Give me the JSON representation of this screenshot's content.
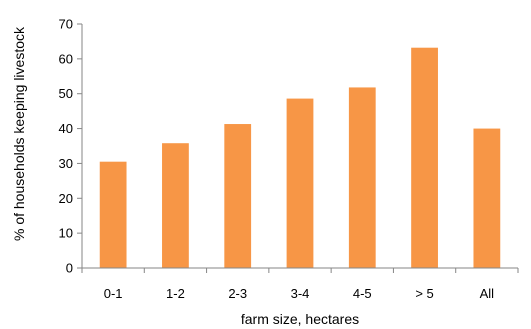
{
  "chart_data": {
    "type": "bar",
    "title": "",
    "xlabel": "farm size, hectares",
    "ylabel": "% of households keeping livestock",
    "categories": [
      "0-1",
      "1-2",
      "2-3",
      "3-4",
      "4-5",
      "> 5",
      "All"
    ],
    "values": [
      30.5,
      35.8,
      41.3,
      48.6,
      51.8,
      63.2,
      40
    ],
    "ylim": [
      0,
      70
    ],
    "yticks": [
      0,
      10,
      20,
      30,
      40,
      50,
      60,
      70
    ],
    "grid": false,
    "legend": "none",
    "bar_color": "#F79646",
    "axis_color": "#868686"
  }
}
